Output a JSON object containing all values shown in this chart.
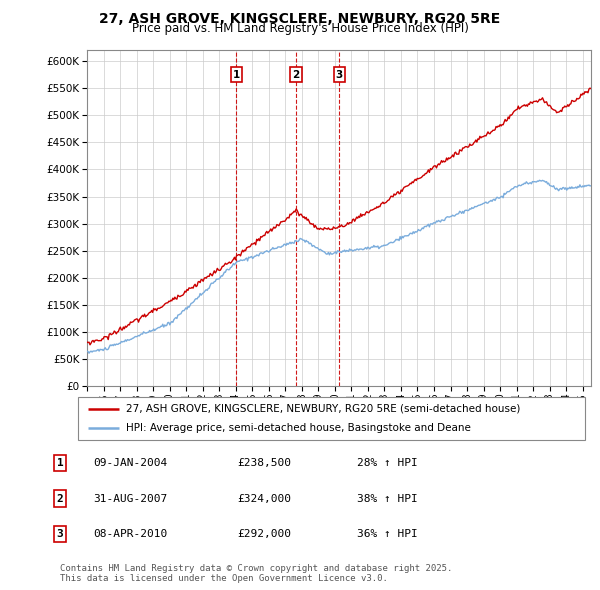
{
  "title": "27, ASH GROVE, KINGSCLERE, NEWBURY, RG20 5RE",
  "subtitle": "Price paid vs. HM Land Registry's House Price Index (HPI)",
  "ylabel_ticks": [
    "£0",
    "£50K",
    "£100K",
    "£150K",
    "£200K",
    "£250K",
    "£300K",
    "£350K",
    "£400K",
    "£450K",
    "£500K",
    "£550K",
    "£600K"
  ],
  "ytick_values": [
    0,
    50000,
    100000,
    150000,
    200000,
    250000,
    300000,
    350000,
    400000,
    450000,
    500000,
    550000,
    600000
  ],
  "ylim": [
    0,
    620000
  ],
  "xlim_start": 1995.3,
  "xlim_end": 2025.5,
  "red_color": "#cc0000",
  "blue_color": "#7aacdc",
  "vline_color": "#cc0000",
  "grid_color": "#cccccc",
  "bg_color": "#ffffff",
  "transactions": [
    {
      "num": 1,
      "date_x": 2004.03,
      "price": 238500,
      "label": "1"
    },
    {
      "num": 2,
      "date_x": 2007.66,
      "price": 324000,
      "label": "2"
    },
    {
      "num": 3,
      "date_x": 2010.27,
      "price": 292000,
      "label": "3"
    }
  ],
  "legend_entries": [
    "27, ASH GROVE, KINGSCLERE, NEWBURY, RG20 5RE (semi-detached house)",
    "HPI: Average price, semi-detached house, Basingstoke and Deane"
  ],
  "table_rows": [
    {
      "num": "1",
      "date": "09-JAN-2004",
      "price": "£238,500",
      "hpi": "28% ↑ HPI"
    },
    {
      "num": "2",
      "date": "31-AUG-2007",
      "price": "£324,000",
      "hpi": "38% ↑ HPI"
    },
    {
      "num": "3",
      "date": "08-APR-2010",
      "price": "£292,000",
      "hpi": "36% ↑ HPI"
    }
  ],
  "footer": "Contains HM Land Registry data © Crown copyright and database right 2025.\nThis data is licensed under the Open Government Licence v3.0."
}
